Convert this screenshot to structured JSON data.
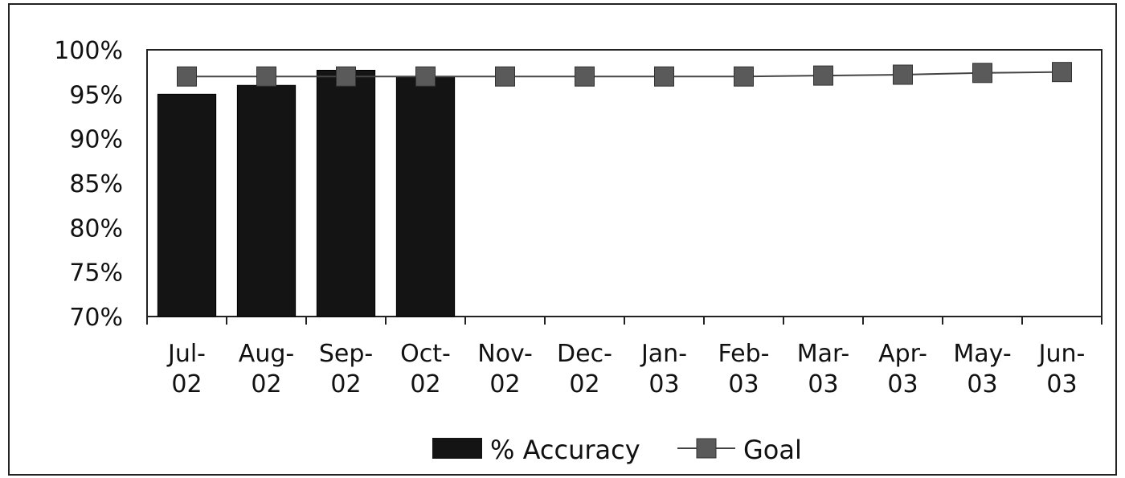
{
  "chart_data": {
    "type": "bar",
    "categories": [
      [
        "Jul-",
        "02"
      ],
      [
        "Aug-",
        "02"
      ],
      [
        "Sep-",
        "02"
      ],
      [
        "Oct-",
        "02"
      ],
      [
        "Nov-",
        "02"
      ],
      [
        "Dec-",
        "02"
      ],
      [
        "Jan-",
        "03"
      ],
      [
        "Feb-",
        "03"
      ],
      [
        "Mar-",
        "03"
      ],
      [
        "Apr-",
        "03"
      ],
      [
        "May-",
        "03"
      ],
      [
        "Jun-",
        "03"
      ]
    ],
    "series": [
      {
        "name": "% Accuracy",
        "type": "bar",
        "color": "#141414",
        "values": [
          95,
          96,
          97.7,
          97,
          null,
          null,
          null,
          null,
          null,
          null,
          null,
          null
        ]
      },
      {
        "name": "Goal",
        "type": "line",
        "color": "#555555",
        "values": [
          97,
          97,
          97,
          97,
          97,
          97,
          97,
          97,
          97.1,
          97.2,
          97.4,
          97.5
        ]
      }
    ],
    "yticks": [
      "70%",
      "75%",
      "80%",
      "85%",
      "90%",
      "95%",
      "100%"
    ],
    "ylim": [
      70,
      100
    ],
    "grid": false,
    "legend_position": "bottom"
  }
}
